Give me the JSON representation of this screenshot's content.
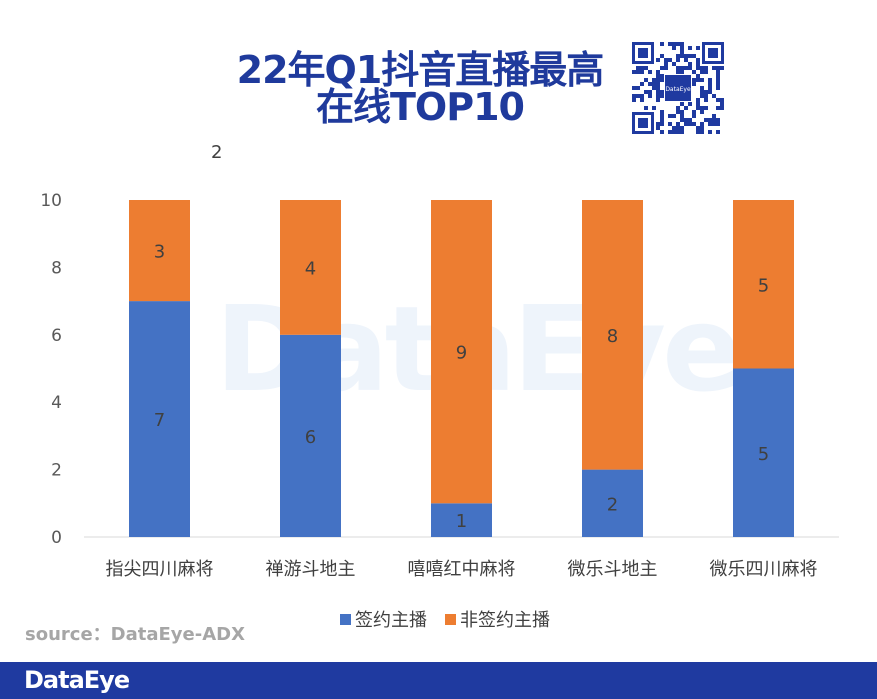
{
  "title": {
    "line1": "22年Q1抖音直播最高",
    "line2": "在线TOP10"
  },
  "stray_text": "2",
  "qr_logo": "DataEye",
  "watermark": "DataEye",
  "source": "source：DataEye-ADX",
  "footer_logo": "DataEye",
  "colors": {
    "signed": "#4472c4",
    "unsigned": "#ed7d31",
    "brand": "#1f3aa0"
  },
  "chart_data": {
    "type": "bar",
    "stacked": true,
    "categories": [
      "指尖四川麻将",
      "禅游斗地主",
      "嘻嘻红中麻将",
      "微乐斗地主",
      "微乐四川麻将"
    ],
    "series": [
      {
        "name": "签约主播",
        "values": [
          7,
          6,
          1,
          2,
          5
        ]
      },
      {
        "name": "非签约主播",
        "values": [
          3,
          4,
          9,
          8,
          5
        ]
      }
    ],
    "ylim": [
      0,
      10
    ],
    "yticks": [
      0,
      2,
      4,
      6,
      8,
      10
    ],
    "grid": false,
    "legend_position": "bottom"
  }
}
